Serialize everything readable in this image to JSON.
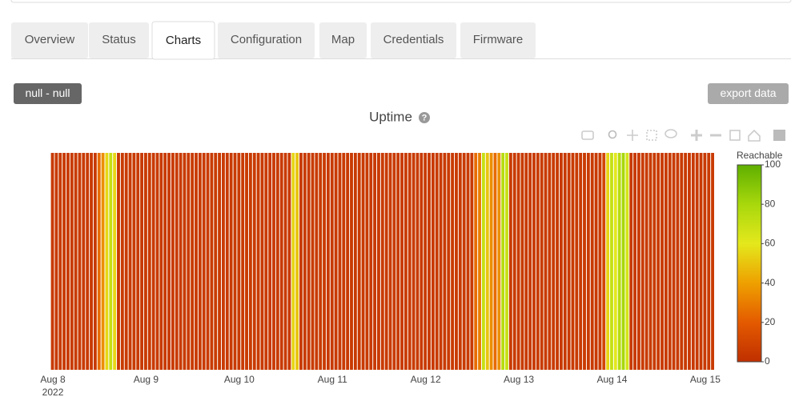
{
  "tabs": [
    "Overview",
    "Status",
    "Charts",
    "Configuration",
    "Map",
    "Credentials",
    "Firmware"
  ],
  "active_tab": 2,
  "range_button": "null - null",
  "export_button": "export data",
  "help_icon": "?",
  "chart_data": {
    "type": "heatmap",
    "title": "Uptime",
    "colorbar_title": "Reachable",
    "colorscale": [
      [
        0,
        "#bf2f00"
      ],
      [
        0.2,
        "#e45a00"
      ],
      [
        0.4,
        "#eea000"
      ],
      [
        0.6,
        "#e4e81c"
      ],
      [
        0.8,
        "#a8d80c"
      ],
      [
        1,
        "#5faf00"
      ]
    ],
    "zlim": [
      0,
      100
    ],
    "zticks": [
      0,
      20,
      40,
      60,
      80,
      100
    ],
    "xlim": [
      "2022-08-07 23:30",
      "2022-08-15 02:30"
    ],
    "xticks": [
      {
        "value": "2022-08-08 00:00",
        "label": "Aug 8",
        "sublabel": "2022"
      },
      {
        "value": "2022-08-09 00:00",
        "label": "Aug 9"
      },
      {
        "value": "2022-08-10 00:00",
        "label": "Aug 10"
      },
      {
        "value": "2022-08-11 00:00",
        "label": "Aug 11"
      },
      {
        "value": "2022-08-12 00:00",
        "label": "Aug 12"
      },
      {
        "value": "2022-08-13 00:00",
        "label": "Aug 13"
      },
      {
        "value": "2022-08-14 00:00",
        "label": "Aug 14"
      },
      {
        "value": "2022-08-15 00:00",
        "label": "Aug 15"
      }
    ],
    "x": [
      "2022-08-08 00:00",
      "2022-08-08 01:00",
      "2022-08-08 02:00",
      "2022-08-08 03:00",
      "2022-08-08 04:00",
      "2022-08-08 05:00",
      "2022-08-08 06:00",
      "2022-08-08 07:00",
      "2022-08-08 08:00",
      "2022-08-08 09:00",
      "2022-08-08 10:00",
      "2022-08-08 11:00",
      "2022-08-08 12:00",
      "2022-08-08 13:00",
      "2022-08-08 14:00",
      "2022-08-08 15:00",
      "2022-08-08 16:00",
      "2022-08-08 17:00",
      "2022-08-08 18:00",
      "2022-08-08 19:00",
      "2022-08-08 20:00",
      "2022-08-08 21:00",
      "2022-08-08 22:00",
      "2022-08-08 23:00",
      "2022-08-09 00:00",
      "2022-08-09 01:00",
      "2022-08-09 02:00",
      "2022-08-09 03:00",
      "2022-08-09 04:00",
      "2022-08-09 05:00",
      "2022-08-09 06:00",
      "2022-08-09 07:00",
      "2022-08-09 08:00",
      "2022-08-09 09:00",
      "2022-08-09 10:00",
      "2022-08-09 11:00",
      "2022-08-09 12:00",
      "2022-08-09 13:00",
      "2022-08-09 14:00",
      "2022-08-09 15:00",
      "2022-08-09 16:00",
      "2022-08-09 17:00",
      "2022-08-09 18:00",
      "2022-08-09 19:00",
      "2022-08-09 20:00",
      "2022-08-09 21:00",
      "2022-08-09 22:00",
      "2022-08-09 23:00",
      "2022-08-10 00:00",
      "2022-08-10 01:00",
      "2022-08-10 02:00",
      "2022-08-10 03:00",
      "2022-08-10 04:00",
      "2022-08-10 05:00",
      "2022-08-10 06:00",
      "2022-08-10 07:00",
      "2022-08-10 08:00",
      "2022-08-10 09:00",
      "2022-08-10 10:00",
      "2022-08-10 11:00",
      "2022-08-10 12:00",
      "2022-08-10 13:00",
      "2022-08-10 14:00",
      "2022-08-10 15:00",
      "2022-08-10 16:00",
      "2022-08-10 17:00",
      "2022-08-10 18:00",
      "2022-08-10 19:00",
      "2022-08-10 20:00",
      "2022-08-10 21:00",
      "2022-08-10 22:00",
      "2022-08-10 23:00",
      "2022-08-11 00:00",
      "2022-08-11 01:00",
      "2022-08-11 02:00",
      "2022-08-11 03:00",
      "2022-08-11 04:00",
      "2022-08-11 05:00",
      "2022-08-11 06:00",
      "2022-08-11 07:00",
      "2022-08-11 08:00",
      "2022-08-11 09:00",
      "2022-08-11 10:00",
      "2022-08-11 11:00",
      "2022-08-11 12:00",
      "2022-08-11 13:00",
      "2022-08-11 14:00",
      "2022-08-11 15:00",
      "2022-08-11 16:00",
      "2022-08-11 17:00",
      "2022-08-11 18:00",
      "2022-08-11 19:00",
      "2022-08-11 20:00",
      "2022-08-11 21:00",
      "2022-08-11 22:00",
      "2022-08-11 23:00",
      "2022-08-12 00:00",
      "2022-08-12 01:00",
      "2022-08-12 02:00",
      "2022-08-12 03:00",
      "2022-08-12 04:00",
      "2022-08-12 05:00",
      "2022-08-12 06:00",
      "2022-08-12 07:00",
      "2022-08-12 08:00",
      "2022-08-12 09:00",
      "2022-08-12 10:00",
      "2022-08-12 11:00",
      "2022-08-12 12:00",
      "2022-08-12 13:00",
      "2022-08-12 14:00",
      "2022-08-12 15:00",
      "2022-08-12 16:00",
      "2022-08-12 17:00",
      "2022-08-12 18:00",
      "2022-08-12 19:00",
      "2022-08-12 20:00",
      "2022-08-12 21:00",
      "2022-08-12 22:00",
      "2022-08-12 23:00",
      "2022-08-13 00:00",
      "2022-08-13 01:00",
      "2022-08-13 02:00",
      "2022-08-13 03:00",
      "2022-08-13 04:00",
      "2022-08-13 05:00",
      "2022-08-13 06:00",
      "2022-08-13 07:00",
      "2022-08-13 08:00",
      "2022-08-13 09:00",
      "2022-08-13 10:00",
      "2022-08-13 11:00",
      "2022-08-13 12:00",
      "2022-08-13 13:00",
      "2022-08-13 14:00",
      "2022-08-13 15:00",
      "2022-08-13 16:00",
      "2022-08-13 17:00",
      "2022-08-13 18:00",
      "2022-08-13 19:00",
      "2022-08-13 20:00",
      "2022-08-13 21:00",
      "2022-08-13 22:00",
      "2022-08-13 23:00",
      "2022-08-14 00:00",
      "2022-08-14 01:00",
      "2022-08-14 02:00",
      "2022-08-14 03:00",
      "2022-08-14 04:00",
      "2022-08-14 05:00",
      "2022-08-14 06:00",
      "2022-08-14 07:00",
      "2022-08-14 08:00",
      "2022-08-14 09:00",
      "2022-08-14 10:00",
      "2022-08-14 11:00",
      "2022-08-14 12:00",
      "2022-08-14 13:00",
      "2022-08-14 14:00",
      "2022-08-14 15:00",
      "2022-08-14 16:00",
      "2022-08-14 17:00",
      "2022-08-14 18:00",
      "2022-08-14 19:00",
      "2022-08-14 20:00",
      "2022-08-14 21:00",
      "2022-08-14 22:00",
      "2022-08-14 23:00",
      "2022-08-15 00:00",
      "2022-08-15 01:00",
      "2022-08-15 02:00"
    ],
    "values": [
      5,
      5,
      5,
      5,
      5,
      5,
      5,
      5,
      5,
      5,
      5,
      5,
      25,
      35,
      55,
      70,
      55,
      5,
      5,
      5,
      5,
      5,
      5,
      5,
      5,
      5,
      5,
      5,
      5,
      5,
      5,
      5,
      5,
      5,
      5,
      5,
      5,
      5,
      5,
      5,
      5,
      5,
      5,
      5,
      5,
      5,
      5,
      5,
      5,
      5,
      5,
      5,
      5,
      5,
      5,
      5,
      5,
      5,
      5,
      5,
      5,
      5,
      55,
      50,
      5,
      5,
      5,
      5,
      5,
      5,
      5,
      5,
      5,
      5,
      5,
      5,
      5,
      5,
      5,
      5,
      5,
      5,
      5,
      5,
      5,
      5,
      5,
      5,
      5,
      5,
      5,
      5,
      5,
      5,
      5,
      5,
      5,
      5,
      5,
      5,
      5,
      5,
      5,
      5,
      5,
      5,
      5,
      5,
      5,
      25,
      30,
      70,
      50,
      35,
      25,
      35,
      75,
      70,
      5,
      5,
      5,
      5,
      5,
      5,
      5,
      5,
      5,
      5,
      5,
      5,
      5,
      5,
      5,
      5,
      5,
      5,
      5,
      5,
      5,
      5,
      5,
      5,
      10,
      55,
      70,
      60,
      75,
      80,
      65,
      5,
      5,
      5,
      5,
      5,
      5,
      5,
      5,
      5,
      5,
      5,
      5,
      5,
      5,
      5,
      5,
      5,
      5,
      5,
      5,
      5,
      5
    ]
  }
}
